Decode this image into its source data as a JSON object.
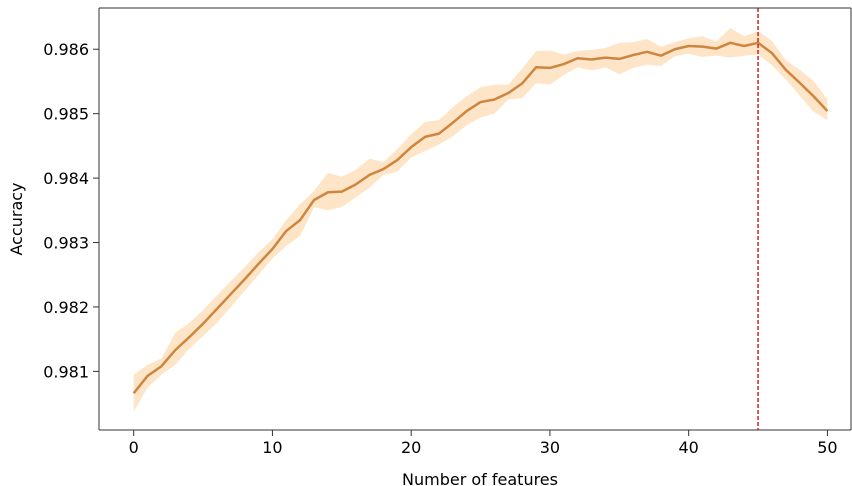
{
  "chart_data": {
    "type": "line",
    "xlabel": "Number of features",
    "ylabel": "Accuracy",
    "xlim": [
      -2.5,
      51.7
    ],
    "ylim": [
      0.98009,
      0.98664
    ],
    "xticks": [
      0,
      10,
      20,
      30,
      40,
      50
    ],
    "xtick_labels": [
      "0",
      "10",
      "20",
      "30",
      "40",
      "50"
    ],
    "yticks": [
      0.981,
      0.982,
      0.983,
      0.984,
      0.985,
      0.986
    ],
    "ytick_labels": [
      "0.981",
      "0.982",
      "0.983",
      "0.984",
      "0.985",
      "0.986"
    ],
    "grid": false,
    "legend": "none",
    "colors": {
      "line": "#cd853f",
      "band": "#ffe4c4",
      "vline": "#cc0000",
      "axis": "#333333"
    },
    "vline_x": 45,
    "series": [
      {
        "x": [
          0,
          1,
          2,
          3,
          4,
          5,
          6,
          7,
          8,
          9,
          10,
          11,
          12,
          13,
          14,
          15,
          16,
          17,
          18,
          19,
          20,
          21,
          22,
          23,
          24,
          25,
          26,
          27,
          28,
          29,
          30,
          31,
          32,
          33,
          34,
          35,
          36,
          37,
          38,
          39,
          40,
          41,
          42,
          43,
          44,
          45,
          46,
          47,
          48,
          49,
          50
        ],
        "values": [
          0.98066,
          0.98093,
          0.98108,
          0.98133,
          0.98153,
          0.98174,
          0.98197,
          0.9822,
          0.98243,
          0.98267,
          0.9829,
          0.98318,
          0.98335,
          0.98366,
          0.98378,
          0.98379,
          0.9839,
          0.98405,
          0.98414,
          0.98428,
          0.98448,
          0.98464,
          0.98469,
          0.98486,
          0.98504,
          0.98518,
          0.98522,
          0.98532,
          0.98547,
          0.98572,
          0.98571,
          0.98577,
          0.98586,
          0.98584,
          0.98587,
          0.98585,
          0.98591,
          0.98596,
          0.9859,
          0.986,
          0.98605,
          0.98604,
          0.98601,
          0.9861,
          0.98605,
          0.9861,
          0.98594,
          0.98568,
          0.98548,
          0.98527,
          0.98504
        ],
        "upper": [
          0.98095,
          0.9811,
          0.9812,
          0.9816,
          0.98175,
          0.98195,
          0.98218,
          0.9824,
          0.98262,
          0.98285,
          0.98305,
          0.98335,
          0.9836,
          0.9838,
          0.98408,
          0.98402,
          0.98413,
          0.9843,
          0.98425,
          0.98445,
          0.98468,
          0.98487,
          0.9849,
          0.9851,
          0.98527,
          0.98541,
          0.98545,
          0.98545,
          0.9857,
          0.98597,
          0.98598,
          0.98592,
          0.98597,
          0.98599,
          0.98602,
          0.9861,
          0.98611,
          0.98616,
          0.98604,
          0.98611,
          0.98617,
          0.9862,
          0.98612,
          0.98633,
          0.9862,
          0.98628,
          0.98613,
          0.98583,
          0.98568,
          0.98551,
          0.98522
        ],
        "lower": [
          0.98037,
          0.98075,
          0.98095,
          0.9811,
          0.98135,
          0.98155,
          0.98175,
          0.982,
          0.98225,
          0.9825,
          0.98275,
          0.98295,
          0.9831,
          0.98355,
          0.9835,
          0.98355,
          0.9837,
          0.98385,
          0.98405,
          0.9841,
          0.98432,
          0.98442,
          0.98452,
          0.98465,
          0.98482,
          0.98494,
          0.985,
          0.98522,
          0.98524,
          0.98547,
          0.98545,
          0.9856,
          0.98572,
          0.98567,
          0.98572,
          0.98561,
          0.98571,
          0.98576,
          0.98574,
          0.98589,
          0.98593,
          0.98588,
          0.9859,
          0.98587,
          0.9859,
          0.98592,
          0.98575,
          0.98553,
          0.98528,
          0.98503,
          0.9849
        ]
      }
    ]
  }
}
